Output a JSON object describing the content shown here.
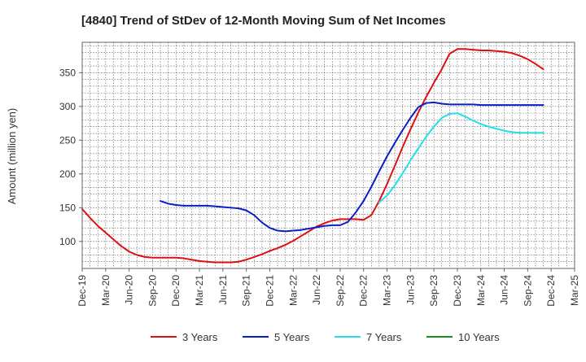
{
  "chart_data": {
    "type": "line",
    "title": "[4840]  Trend of StDev of 12-Month Moving Sum of Net Incomes",
    "xlabel": "",
    "ylabel": "Amount (million yen)",
    "ylim": [
      60,
      395
    ],
    "yticks": [
      100,
      150,
      200,
      250,
      300,
      350
    ],
    "x_tick_labels": [
      "Dec-19",
      "Mar-20",
      "Jun-20",
      "Sep-20",
      "Dec-20",
      "Mar-21",
      "Jun-21",
      "Sep-21",
      "Dec-21",
      "Mar-22",
      "Jun-22",
      "Sep-22",
      "Dec-22",
      "Mar-23",
      "Jun-23",
      "Sep-23",
      "Dec-23",
      "Mar-24",
      "Jun-24",
      "Sep-24",
      "Dec-24",
      "Mar-25"
    ],
    "grid": true,
    "legend_position": "bottom",
    "series": [
      {
        "name": "3 Years",
        "color": "#dd1111",
        "values": [
          148,
          135,
          123,
          113,
          103,
          93,
          85,
          80,
          77,
          76,
          76,
          76,
          76,
          75,
          73,
          71,
          70,
          69,
          69,
          69,
          70,
          73,
          77,
          81,
          86,
          90,
          95,
          101,
          108,
          115,
          122,
          127,
          131,
          133,
          133,
          133,
          132,
          139,
          160,
          185,
          212,
          240,
          266,
          291,
          314,
          335,
          355,
          378,
          385,
          385,
          384,
          383,
          383,
          382,
          381,
          379,
          375,
          370,
          363,
          355
        ]
      },
      {
        "name": "5 Years",
        "color": "#0a1ec8",
        "values": [
          null,
          null,
          null,
          null,
          null,
          null,
          null,
          null,
          null,
          null,
          160,
          156,
          154,
          153,
          153,
          153,
          153,
          152,
          151,
          150,
          149,
          146,
          139,
          128,
          120,
          116,
          115,
          116,
          117,
          119,
          121,
          123,
          124,
          124,
          129,
          143,
          160,
          181,
          204,
          226,
          246,
          265,
          283,
          299,
          305,
          306,
          304,
          303,
          303,
          303,
          303,
          302,
          302,
          302,
          302,
          302,
          302,
          302,
          302,
          302
        ]
      },
      {
        "name": "7 Years",
        "color": "#22e0e8",
        "values": [
          null,
          null,
          null,
          null,
          null,
          null,
          null,
          null,
          null,
          null,
          null,
          null,
          null,
          null,
          null,
          null,
          null,
          null,
          null,
          null,
          null,
          null,
          null,
          null,
          null,
          null,
          null,
          null,
          null,
          null,
          null,
          null,
          null,
          null,
          null,
          null,
          null,
          null,
          158,
          168,
          183,
          201,
          220,
          238,
          255,
          270,
          283,
          289,
          290,
          285,
          279,
          274,
          270,
          267,
          264,
          262,
          261,
          261,
          261,
          261
        ]
      },
      {
        "name": "10 Years",
        "color": "#1a8c1a",
        "values": []
      }
    ]
  }
}
